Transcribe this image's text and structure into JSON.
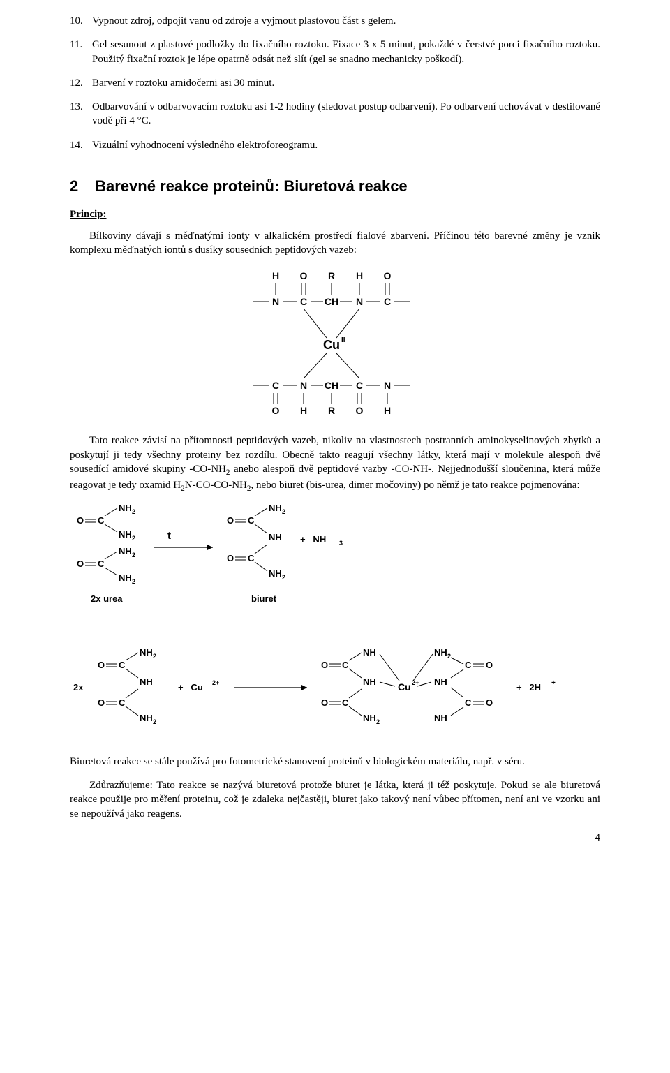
{
  "list": {
    "items": [
      {
        "num": "10.",
        "text": "Vypnout zdroj, odpojit vanu od zdroje a vyjmout plastovou část s gelem."
      },
      {
        "num": "11.",
        "text": "Gel sesunout z plastové podložky do fixačního roztoku. Fixace 3 x 5 minut, pokaždé v čerstvé porci fixačního roztoku. Použitý fixační roztok je lépe opatrně odsát než slít (gel se snadno mechanicky poškodí)."
      },
      {
        "num": "12.",
        "text": "Barvení v roztoku amidočerni asi 30 minut."
      },
      {
        "num": "13.",
        "text": "Odbarvování v odbarvovacím roztoku asi 1-2 hodiny (sledovat postup odbarvení). Po odbarvení uchovávat v destilované vodě při 4 °C."
      },
      {
        "num": "14.",
        "text": "Vizuální vyhodnocení výsledného elektroforeogramu."
      }
    ]
  },
  "section": {
    "num": "2",
    "title": "Barevné reakce proteinů: Biuretová reakce"
  },
  "principle_label": "Princip:",
  "para1a": "Bílkoviny dávají s měďnatými ionty v alkalickém prostředí fialové zbarvení. Příčinou této barevné změny je vznik komplexu měďnatých iontů s dusíky sousedních peptidových vazeb:",
  "para2_html": "Tato reakce závisí na přítomnosti peptidových vazeb, nikoliv na vlastnostech postranních aminokyselinových zbytků a poskytují ji tedy všechny proteiny bez rozdílu. Obecně takto reagují všechny látky, která mají v molekule alespoň dvě sousedící amidové skupiny -CO-NH<sub>2</sub> anebo alespoň dvě peptidové vazby -CO-NH-. Nejjednodušší sloučenina, která může reagovat je tedy oxamid H<sub>2</sub>N-CO-CO-NH<sub>2</sub>, nebo biuret (bis-urea, dimer močoviny) po němž je tato reakce pojmenována:",
  "para3": "Biuretová reakce se stále používá pro fotometrické stanovení proteinů v biologickém materiálu, např. v séru.",
  "para4": "Zdůrazňujeme: Tato reakce se nazývá biuretová protože biuret je látka, která ji též poskytuje. Pokud se ale biuretová reakce použije pro měření proteinu, což je zdaleka nejčastěji, biuret jako takový není vůbec přítomen, není ani ve vzorku ani se nepoužívá jako reagens.",
  "diagram1": {
    "letters": {
      "top": [
        "H",
        "O",
        "R",
        "H",
        "O"
      ],
      "row1": [
        "N",
        "C",
        "CH",
        "N",
        "C"
      ],
      "center": "Cu",
      "center_sup": "II",
      "row2": [
        "C",
        "N",
        "CH",
        "C",
        "N"
      ],
      "bot": [
        "O",
        "H",
        "R",
        "O",
        "H"
      ]
    },
    "color": "#000000",
    "font": 14
  },
  "diagram2": {
    "labels": {
      "urea2x": "2x urea",
      "t": "t",
      "biuret": "biuret",
      "arrow_plus_nh3_html": "+   NH<sub>3</sub>"
    }
  },
  "diagram3": {
    "labels": {
      "two_x": "2x",
      "plus_cu_html": "+   Cu<sup>2+</sup>",
      "plus_2h_html": "+   2H<sup>+</sup>",
      "cu_center_html": "Cu<sup>2+</sup>"
    }
  },
  "page_number": "4",
  "colors": {
    "text": "#000000",
    "bg": "#ffffff"
  }
}
